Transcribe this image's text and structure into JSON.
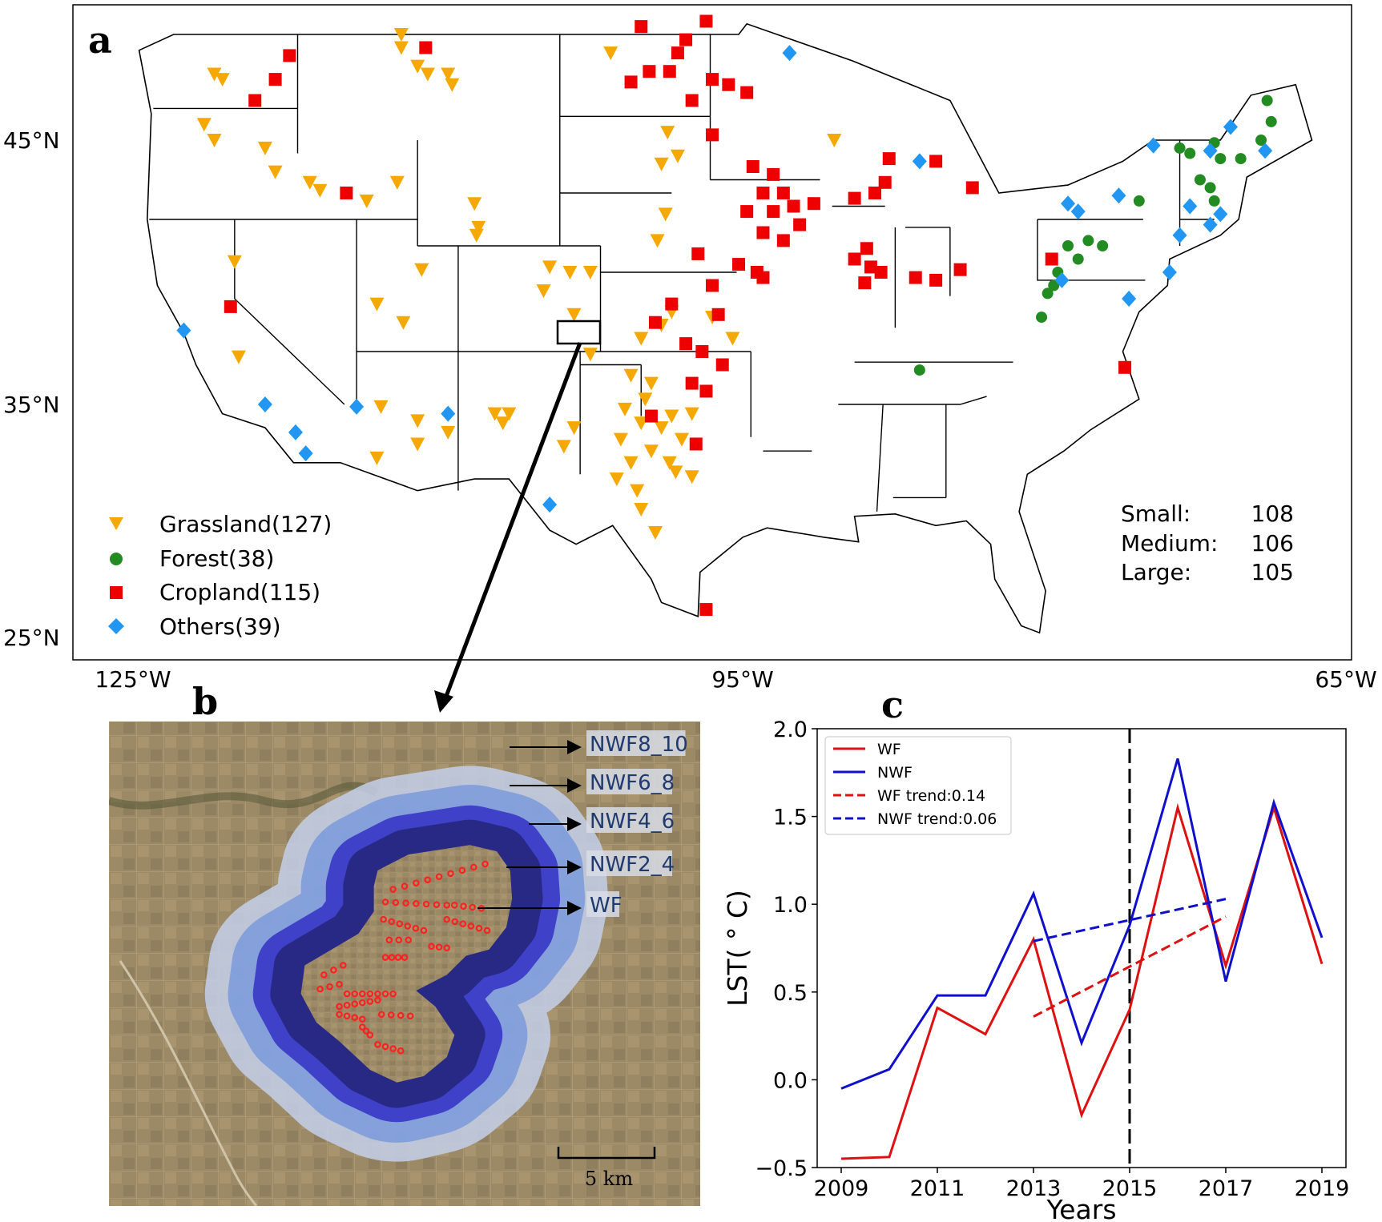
{
  "figure": {
    "panel_a": {
      "letter": "a",
      "lat_ticks": [
        "45°N",
        "35°N",
        "25°N"
      ],
      "lon_ticks": [
        "125°W",
        "95°W",
        "65°W"
      ],
      "legend": [
        {
          "label": "Grassland(127)",
          "color": "#f5a800",
          "marker": "triangle-down"
        },
        {
          "label": "Forest(38)",
          "color": "#228b22",
          "marker": "circle"
        },
        {
          "label": "Cropland(115)",
          "color": "#ee0000",
          "marker": "square"
        },
        {
          "label": "Others(39)",
          "color": "#2196f3",
          "marker": "diamond"
        }
      ],
      "size_counts": [
        {
          "label": "Small:",
          "value": "108"
        },
        {
          "label": "Medium:",
          "value": "106"
        },
        {
          "label": "Large:",
          "value": "105"
        }
      ],
      "sites": {
        "grassland": [
          [
            -121,
            47.5
          ],
          [
            -120.6,
            47.3
          ],
          [
            -121.5,
            45.6
          ],
          [
            -121,
            45
          ],
          [
            -118.5,
            44.7
          ],
          [
            -118,
            43.8
          ],
          [
            -111.8,
            49
          ],
          [
            -111.8,
            48.5
          ],
          [
            -111,
            47.8
          ],
          [
            -110.5,
            47.5
          ],
          [
            -109.5,
            47.5
          ],
          [
            -109.3,
            47.1
          ],
          [
            -116.3,
            43.4
          ],
          [
            -115.8,
            43.1
          ],
          [
            -113.5,
            42.7
          ],
          [
            -112,
            43.4
          ],
          [
            -108.2,
            42.6
          ],
          [
            -108,
            41.7
          ],
          [
            -108.1,
            41.4
          ],
          [
            -110.8,
            40.1
          ],
          [
            -113,
            38.8
          ],
          [
            -111.7,
            38.1
          ],
          [
            -104.5,
            40.2
          ],
          [
            -103.5,
            40
          ],
          [
            -102.5,
            40
          ],
          [
            -104.8,
            39.3
          ],
          [
            -103.3,
            38.4
          ],
          [
            -102.5,
            36.9
          ],
          [
            -100.5,
            36.1
          ],
          [
            -99.5,
            35.8
          ],
          [
            -100,
            34.2
          ],
          [
            -101,
            33.5
          ],
          [
            -100.5,
            32.5
          ],
          [
            -99.5,
            33
          ],
          [
            -98,
            33.5
          ],
          [
            -98.5,
            34.5
          ],
          [
            -97.5,
            34.6
          ],
          [
            -96.5,
            38.3
          ],
          [
            -98.5,
            38.5
          ],
          [
            -99,
            38
          ],
          [
            -100,
            37.5
          ],
          [
            -95.5,
            37.5
          ],
          [
            -98.7,
            45.3
          ],
          [
            -99,
            44.1
          ],
          [
            -98.2,
            44.4
          ],
          [
            -98.8,
            42.2
          ],
          [
            -99.2,
            41.2
          ],
          [
            -120,
            40.4
          ],
          [
            -119.8,
            36.8
          ],
          [
            -112.8,
            34.9
          ],
          [
            -111,
            34.3
          ],
          [
            -109.5,
            33.8
          ],
          [
            -106.8,
            34.2
          ],
          [
            -103.8,
            33.2
          ],
          [
            -103.3,
            34
          ],
          [
            -100,
            30.5
          ],
          [
            -99.3,
            29.5
          ],
          [
            -113,
            32.7
          ],
          [
            -111,
            33.3
          ],
          [
            -101.5,
            48.3
          ],
          [
            -99.8,
            35.2
          ],
          [
            -100.8,
            34.8
          ],
          [
            -99,
            34
          ],
          [
            -101.2,
            31.8
          ],
          [
            -100.2,
            31.3
          ],
          [
            -98.6,
            32.5
          ],
          [
            -97.5,
            31.9
          ],
          [
            -98.3,
            32.1
          ],
          [
            -106.5,
            34.6
          ],
          [
            -107.2,
            34.6
          ],
          [
            -90.5,
            45
          ]
        ],
        "forest": [
          [
            -79,
            41
          ],
          [
            -78.5,
            40.5
          ],
          [
            -78,
            41.2
          ],
          [
            -77.3,
            41
          ],
          [
            -79.5,
            40
          ],
          [
            -80,
            39.2
          ],
          [
            -80.3,
            38.3
          ],
          [
            -79.7,
            39.5
          ],
          [
            -86.3,
            36.3
          ],
          [
            -73,
            44.5
          ],
          [
            -71.5,
            44.3
          ],
          [
            -70.5,
            44.3
          ],
          [
            -69.5,
            45
          ],
          [
            -69,
            45.7
          ],
          [
            -69.2,
            46.5
          ],
          [
            -72.5,
            43.5
          ],
          [
            -72,
            43.2
          ],
          [
            -75.5,
            42.7
          ],
          [
            -71.8,
            44.9
          ],
          [
            -73.5,
            44.7
          ],
          [
            -71.8,
            42.7
          ]
        ],
        "cropland": [
          [
            -100,
            49.3
          ],
          [
            -97.8,
            48.8
          ],
          [
            -96.8,
            49.5
          ],
          [
            -98.2,
            48.3
          ],
          [
            -96.5,
            47.3
          ],
          [
            -95.7,
            47.1
          ],
          [
            -100.5,
            47.2
          ],
          [
            -99.6,
            47.6
          ],
          [
            -98.6,
            47.6
          ],
          [
            -97.5,
            46.5
          ],
          [
            -94.8,
            46.8
          ],
          [
            -96.5,
            45.2
          ],
          [
            -94.5,
            44
          ],
          [
            -93.5,
            43.7
          ],
          [
            -93,
            43
          ],
          [
            -94,
            43
          ],
          [
            -93.5,
            42.3
          ],
          [
            -92.5,
            42.5
          ],
          [
            -94,
            41.5
          ],
          [
            -93,
            41.2
          ],
          [
            -92.2,
            41.8
          ],
          [
            -94.8,
            42.3
          ],
          [
            -91.5,
            42.6
          ],
          [
            -89.5,
            40.5
          ],
          [
            -88.7,
            40.2
          ],
          [
            -88.2,
            40
          ],
          [
            -89,
            39.6
          ],
          [
            -88.9,
            40.9
          ],
          [
            -86.5,
            39.8
          ],
          [
            -85.5,
            39.7
          ],
          [
            -84.3,
            40.1
          ],
          [
            -88.5,
            43
          ],
          [
            -89.5,
            42.8
          ],
          [
            -88,
            43.4
          ],
          [
            -87.8,
            44.3
          ],
          [
            -83.7,
            43.2
          ],
          [
            -85.5,
            44.2
          ],
          [
            -95.2,
            40.3
          ],
          [
            -94.3,
            40
          ],
          [
            -94,
            39.8
          ],
          [
            -97.2,
            40.7
          ],
          [
            -96.5,
            39.5
          ],
          [
            -96.2,
            38.4
          ],
          [
            -98.5,
            38.8
          ],
          [
            -99.3,
            38.1
          ],
          [
            -97.8,
            37.3
          ],
          [
            -97,
            37
          ],
          [
            -96,
            36.5
          ],
          [
            -96.8,
            35.5
          ],
          [
            -97.5,
            35.8
          ],
          [
            -99.5,
            34.5
          ],
          [
            -97.3,
            33.3
          ],
          [
            -96.8,
            26.2
          ],
          [
            -119,
            46.5
          ],
          [
            -118,
            47.3
          ],
          [
            -117.3,
            48.2
          ],
          [
            -110.6,
            48.5
          ],
          [
            -114.5,
            43
          ],
          [
            -120.2,
            38.7
          ],
          [
            -79.8,
            40.5
          ],
          [
            -76.2,
            36.4
          ]
        ],
        "others": [
          [
            -92.7,
            48.3
          ],
          [
            -86.3,
            44.2
          ],
          [
            -74.8,
            44.8
          ],
          [
            -72,
            44.6
          ],
          [
            -71,
            45.5
          ],
          [
            -69.3,
            44.6
          ],
          [
            -79,
            42.6
          ],
          [
            -78.5,
            42.3
          ],
          [
            -76.5,
            42.9
          ],
          [
            -73,
            42.5
          ],
          [
            -72,
            41.8
          ],
          [
            -71.5,
            42.2
          ],
          [
            -74,
            40
          ],
          [
            -73.5,
            41.4
          ],
          [
            -76,
            39
          ],
          [
            -79.3,
            39.7
          ],
          [
            -122.5,
            37.8
          ],
          [
            -118.5,
            35
          ],
          [
            -117,
            33.8
          ],
          [
            -116.5,
            32.9
          ],
          [
            -114,
            34.9
          ],
          [
            -109.5,
            34.6
          ],
          [
            -104.5,
            30.7
          ]
        ]
      }
    },
    "panel_b": {
      "letter": "b",
      "zone_labels": [
        "NWF8_10",
        "NWF6_8",
        "NWF4_6",
        "NWF2_4",
        "WF"
      ],
      "zone_colors": [
        "#c4d0ea",
        "#7f9ddb",
        "#3a3ac8",
        "#25257a"
      ],
      "wf_color": "#ff2020",
      "scale_bar": "5 km"
    },
    "panel_c": {
      "letter": "c"
    }
  },
  "chart_data": {
    "type": "line",
    "title": "",
    "xlabel": "Years",
    "ylabel": "LST( ° C)",
    "xlim": [
      2008.5,
      2019.5
    ],
    "ylim": [
      -0.5,
      2.0
    ],
    "x_ticks": [
      "2009",
      "2011",
      "2013",
      "2015",
      "2017",
      "2019"
    ],
    "y_ticks": [
      "2.0",
      "1.5",
      "1.0",
      "0.5",
      "0.0",
      "−0.5"
    ],
    "grid": false,
    "legend_position": "top-left",
    "x": [
      2009,
      2010,
      2011,
      2012,
      2013,
      2014,
      2015,
      2016,
      2017,
      2018,
      2019
    ],
    "series": [
      {
        "name": "WF",
        "color": "#dd1111",
        "style": "solid",
        "values": [
          -0.45,
          -0.44,
          0.41,
          0.26,
          0.8,
          -0.2,
          0.4,
          1.55,
          0.65,
          1.55,
          0.66
        ]
      },
      {
        "name": "NWF",
        "color": "#1010cc",
        "style": "solid",
        "values": [
          -0.05,
          0.06,
          0.48,
          0.48,
          1.06,
          0.21,
          0.88,
          1.83,
          0.56,
          1.58,
          0.81
        ]
      }
    ],
    "trends": [
      {
        "name": "WF trend:0.14",
        "color": "#dd1111",
        "style": "dashed",
        "x": [
          2013,
          2017
        ],
        "values": [
          0.36,
          0.93
        ]
      },
      {
        "name": "NWF trend:0.06",
        "color": "#1010cc",
        "style": "dashed",
        "x": [
          2013,
          2017
        ],
        "values": [
          0.79,
          1.03
        ]
      }
    ],
    "vertical_line": {
      "x": 2015,
      "color": "#000000",
      "style": "dashed"
    }
  }
}
